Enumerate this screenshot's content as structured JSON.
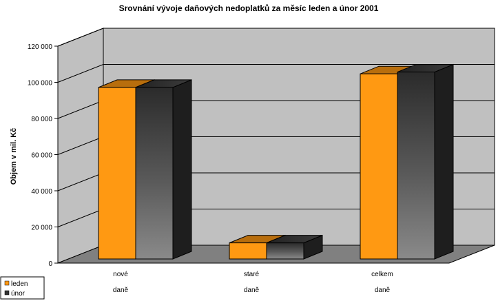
{
  "chart_data": {
    "type": "bar",
    "title": "Srovnání vývoje daňových nedoplatků za měsíc leden a únor 2001",
    "xlabel": "",
    "ylabel": "Objem v mil. Kč",
    "ylim": [
      0,
      120000
    ],
    "yticks": [
      "0",
      "20 000",
      "40 000",
      "60 000",
      "80 000",
      "100 000",
      "120 000"
    ],
    "categories": [
      {
        "line1": "nové",
        "line2": "daně"
      },
      {
        "line1": "staré",
        "line2": "daně"
      },
      {
        "line1": "celkem",
        "line2": "daně"
      }
    ],
    "series": [
      {
        "name": "leden",
        "values": [
          93000,
          7000,
          100500
        ],
        "color": "#ff9912"
      },
      {
        "name": "únor",
        "values": [
          93000,
          7000,
          101500
        ],
        "color": "#555555"
      }
    ],
    "grid": true,
    "legend": "bottom-left",
    "three_d": true,
    "wall_color": "#c0c0c0",
    "floor_color": "#808080"
  }
}
